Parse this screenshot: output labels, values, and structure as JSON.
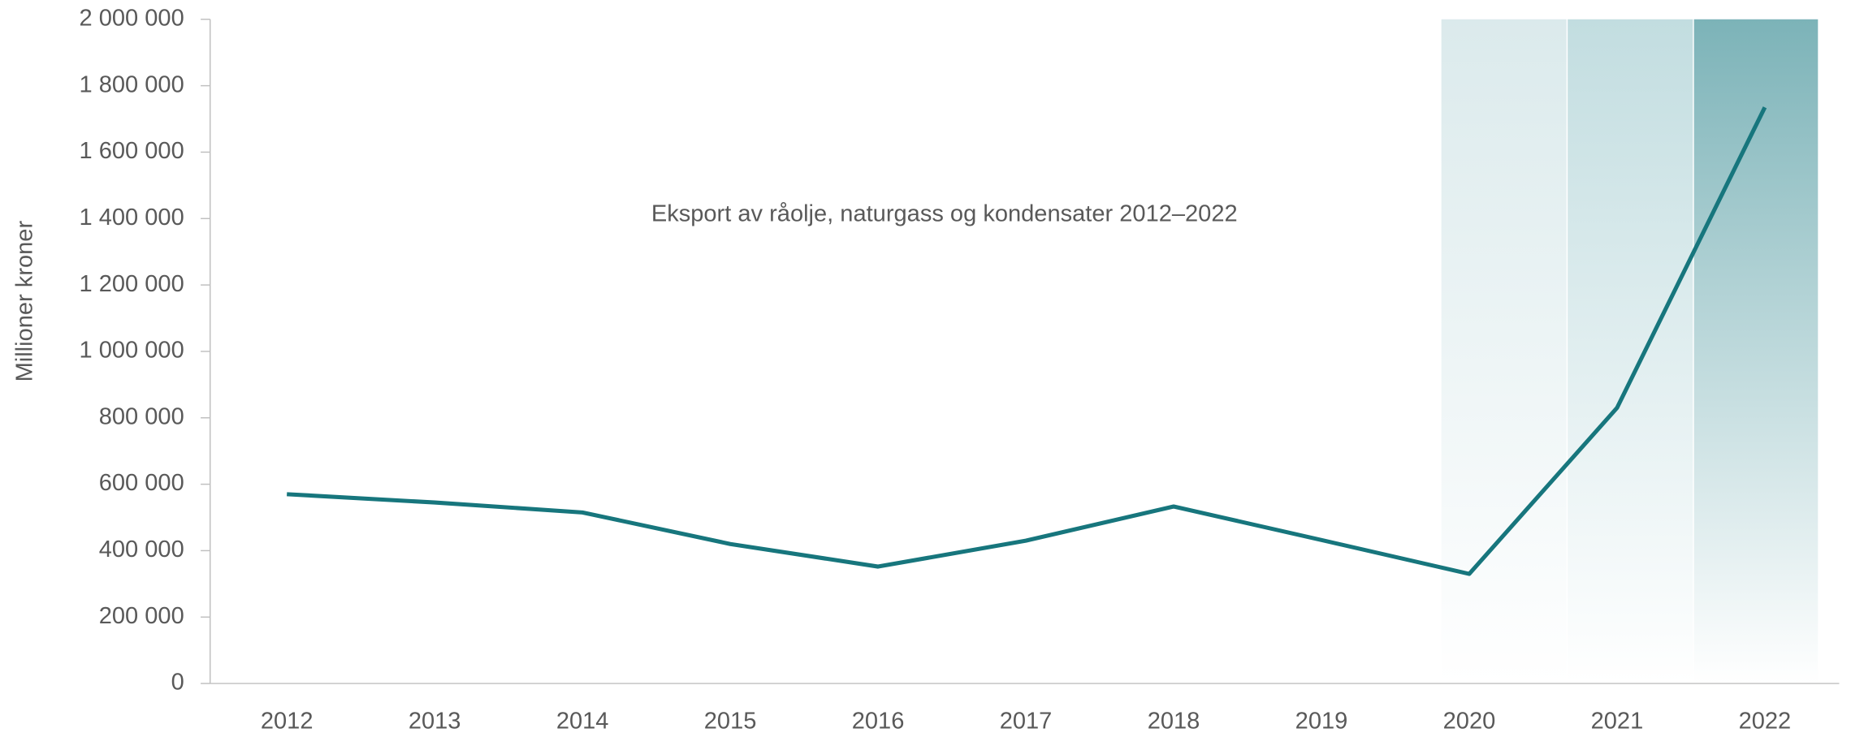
{
  "chart_data": {
    "type": "line",
    "title": "Eksport av råolje, naturgass og kondensater 2012–2022",
    "y_label": "Millioner kroner",
    "categories": [
      "2012",
      "2013",
      "2014",
      "2015",
      "2016",
      "2017",
      "2018",
      "2019",
      "2020",
      "2021",
      "2022"
    ],
    "series": [
      {
        "name": "Eksport",
        "color": "#17767d",
        "values": [
          570000,
          545000,
          515000,
          420000,
          352000,
          430000,
          533000,
          432000,
          330000,
          830000,
          1735000
        ]
      }
    ],
    "ylim": [
      0,
      2000000
    ],
    "yticks": [
      0,
      {
        "value": 200000,
        "label": "200 000"
      },
      {
        "value": 400000,
        "label": "400 000"
      },
      {
        "value": 600000,
        "label": "600 000"
      },
      {
        "value": 800000,
        "label": "800 000"
      },
      {
        "value": 1000000,
        "label": "1 000 000"
      },
      {
        "value": 1200000,
        "label": "1 200 000"
      },
      {
        "value": 1400000,
        "label": "1 400 000"
      },
      {
        "value": 1600000,
        "label": "1 600 000"
      },
      {
        "value": 1800000,
        "label": "1 800 000"
      },
      {
        "value": 2000000,
        "label": "2 000 000"
      }
    ],
    "grid": false
  }
}
